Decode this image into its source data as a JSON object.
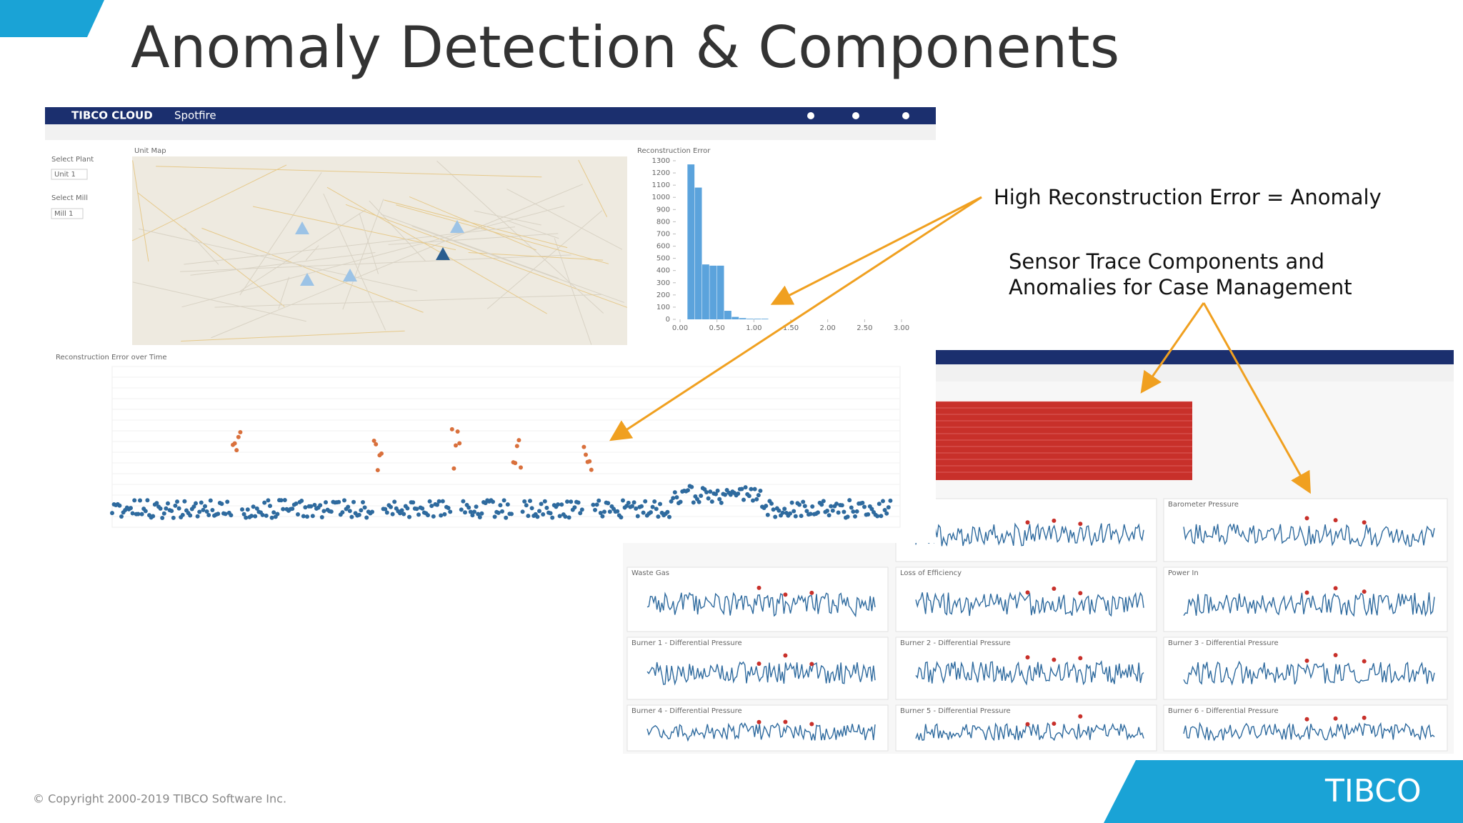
{
  "slide": {
    "title": "Anomaly Detection & Components",
    "annotations": [
      "High Reconstruction Error = Anomaly",
      "Sensor Trace Components and",
      "Anomalies for Case Management"
    ],
    "copyright": "© Copyright 2000-2019 TIBCO Software Inc.",
    "logo": "TIBCO"
  },
  "screenshot_1": {
    "brand": "TIBCO CLOUD",
    "app": "Spotfire",
    "select_plant": "Select Plant",
    "plant": "Unit 1",
    "select_mill": "Select Mill",
    "mill": "Mill 1",
    "map_title": "Unit Map",
    "histogram": {
      "type": "histogram",
      "title": "Reconstruction Error",
      "bins": [
        0.1,
        0.2,
        0.3,
        0.4,
        0.5,
        0.6,
        0.7,
        0.8,
        0.9,
        1.0,
        1.1,
        1.2
      ],
      "values": [
        1270,
        1080,
        450,
        440,
        440,
        70,
        20,
        10,
        5,
        5,
        5
      ],
      "color": "#5ba3dc",
      "xlim": [
        0,
        3
      ],
      "xticks": [
        {
          "value": 0,
          "label": "0.00"
        },
        {
          "value": 0.5,
          "label": "0.50"
        },
        {
          "value": 1,
          "label": "1.00"
        },
        {
          "value": 1.5,
          "label": "1.50"
        },
        {
          "value": 2,
          "label": "2.00"
        },
        {
          "value": 2.5,
          "label": "2.50"
        },
        {
          "value": 3,
          "label": "3.00"
        }
      ],
      "ylim": [
        0,
        1300
      ],
      "yticks": [
        0,
        100,
        200,
        300,
        400,
        500,
        600,
        700,
        800,
        900,
        1000,
        1100,
        1200,
        1300
      ]
    },
    "time_chart_title": "Reconstruction Error over Time"
  },
  "screenshot_2": {
    "panels": [
      "Barometer Pressure",
      "Waste Gas",
      "Loss of Efficiency",
      "Power In",
      "Burner 1 - Differential Pressure",
      "Burner 2 - Differential Pressure",
      "Burner 3 - Differential Pressure",
      "Burner 4 - Differential Pressure",
      "Burner 5 - Differential Pressure",
      "Burner 6 - Differential Pressure"
    ]
  }
}
